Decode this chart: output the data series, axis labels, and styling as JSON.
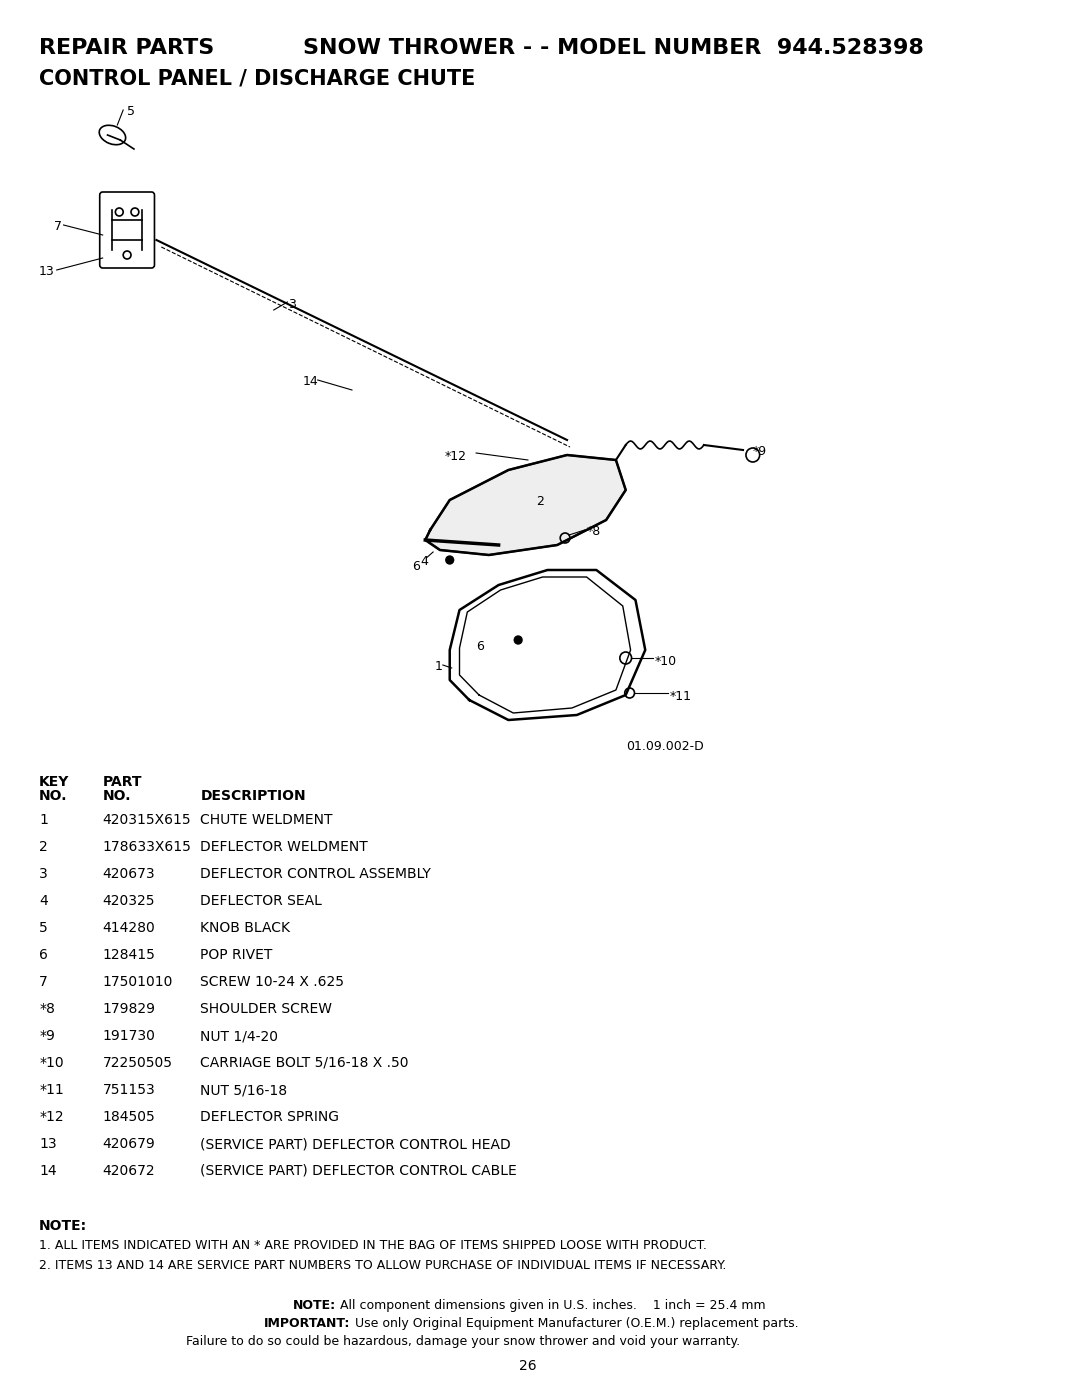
{
  "title_left": "REPAIR PARTS",
  "title_center": "SNOW THROWER - - MODEL NUMBER  944.528398",
  "subtitle": "CONTROL PANEL / DISCHARGE CHUTE",
  "bg_color": "#ffffff",
  "table_headers": [
    "KEY\nNO.",
    "PART\nNO.",
    "DESCRIPTION"
  ],
  "parts": [
    [
      "1",
      "420315X615",
      "CHUTE WELDMENT"
    ],
    [
      "2",
      "178633X615",
      "DEFLECTOR WELDMENT"
    ],
    [
      "3",
      "420673",
      "DEFLECTOR CONTROL ASSEMBLY"
    ],
    [
      "4",
      "420325",
      "DEFLECTOR SEAL"
    ],
    [
      "5",
      "414280",
      "KNOB BLACK"
    ],
    [
      "6",
      "128415",
      "POP RIVET"
    ],
    [
      "7",
      "17501010",
      "SCREW 10-24 X .625"
    ],
    [
      "*8",
      "179829",
      "SHOULDER SCREW"
    ],
    [
      "*9",
      "191730",
      "NUT 1/4-20"
    ],
    [
      "*10",
      "72250505",
      "CARRIAGE BOLT 5/16-18 X .50"
    ],
    [
      "*11",
      "751153",
      "NUT 5/16-18"
    ],
    [
      "*12",
      "184505",
      "DEFLECTOR SPRING"
    ],
    [
      "13",
      "420679",
      "(SERVICE PART) DEFLECTOR CONTROL HEAD"
    ],
    [
      "14",
      "420672",
      "(SERVICE PART) DEFLECTOR CONTROL CABLE"
    ]
  ],
  "note_bold": "NOTE:",
  "notes": [
    "1. ALL ITEMS INDICATED WITH AN * ARE PROVIDED IN THE BAG OF ITEMS SHIPPED LOOSE WITH PRODUCT.",
    "2. ITEMS 13 AND 14 ARE SERVICE PART NUMBERS TO ALLOW PURCHASE OF INDIVIDUAL ITEMS IF NECESSARY."
  ],
  "footer_note_bold": "NOTE:",
  "footer_note": "  All component dimensions given in U.S. inches.    1 inch = 25.4 mm",
  "footer_important_bold": "IMPORTANT:",
  "footer_important": "  Use only Original Equipment Manufacturer (O.E.M.) replacement parts.",
  "footer_line3": "Failure to do so could be hazardous, damage your snow thrower and void your warranty.",
  "page_number": "26",
  "diagram_ref": "01.09.002-D"
}
